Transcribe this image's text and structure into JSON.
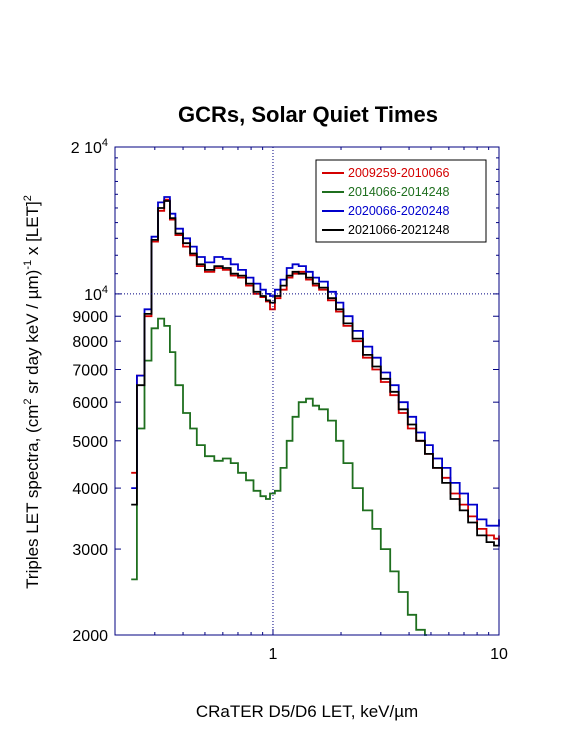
{
  "chart_data": {
    "type": "line",
    "title": "GCRs, Solar Quiet Times",
    "xlabel": "CRaTER D5/D6 LET, keV/µm",
    "ylabel": {
      "prefix": "Triples LET spectra, (cm",
      "sup1": "2",
      "middle": " sr day keV / µm)",
      "sup2": "-1",
      "suffix": " x [LET]",
      "sup3": "2"
    },
    "xscale": "log",
    "yscale": "log",
    "xlim": [
      0.2,
      10
    ],
    "ylim": [
      2000,
      20000
    ],
    "xticks": [
      {
        "value": 1,
        "label": "1"
      },
      {
        "value": 10,
        "label": "10"
      }
    ],
    "yticks": [
      {
        "value": 2000,
        "label": "2000"
      },
      {
        "value": 3000,
        "label": "3000"
      },
      {
        "value": 4000,
        "label": "4000"
      },
      {
        "value": 5000,
        "label": "5000"
      },
      {
        "value": 6000,
        "label": "6000"
      },
      {
        "value": 7000,
        "label": "7000"
      },
      {
        "value": 8000,
        "label": "8000"
      },
      {
        "value": 9000,
        "label": "9000"
      }
    ],
    "ytick_top": {
      "value": 20000,
      "base": "2 10",
      "exp": "4"
    },
    "ytick_mid": {
      "value": 10000,
      "base": "10",
      "exp": "4"
    },
    "reference_lines": {
      "x": 1,
      "y": 10000
    },
    "legend_position": "top-right",
    "series": [
      {
        "name": "2009259-2010066",
        "color": "#d40000",
        "x": [
          0.236,
          0.25,
          0.27,
          0.29,
          0.31,
          0.33,
          0.35,
          0.37,
          0.4,
          0.43,
          0.46,
          0.5,
          0.55,
          0.6,
          0.65,
          0.7,
          0.76,
          0.82,
          0.88,
          0.93,
          0.97,
          1.02,
          1.08,
          1.15,
          1.22,
          1.3,
          1.4,
          1.5,
          1.6,
          1.75,
          1.9,
          2.05,
          2.25,
          2.5,
          2.75,
          3.0,
          3.3,
          3.6,
          3.95,
          4.3,
          4.7,
          5.1,
          5.6,
          6.1,
          6.7,
          7.3,
          8.0,
          8.8,
          9.5,
          10.0
        ],
        "y": [
          4300,
          6800,
          9000,
          12800,
          14800,
          15600,
          14200,
          13200,
          12500,
          12000,
          11400,
          11100,
          11300,
          11200,
          10900,
          10800,
          10400,
          10000,
          9850,
          9650,
          9300,
          9800,
          10200,
          10800,
          11000,
          11100,
          10700,
          10400,
          10200,
          9700,
          9200,
          8600,
          8000,
          7400,
          7000,
          6600,
          6200,
          5700,
          5300,
          5000,
          4700,
          4400,
          4200,
          3900,
          3700,
          3500,
          3300,
          3200,
          3150,
          3200
        ]
      },
      {
        "name": "2014066-2014248",
        "color": "#1f6f1f",
        "x": [
          0.236,
          0.25,
          0.27,
          0.29,
          0.31,
          0.33,
          0.35,
          0.37,
          0.4,
          0.43,
          0.46,
          0.5,
          0.55,
          0.6,
          0.65,
          0.7,
          0.76,
          0.82,
          0.88,
          0.93,
          0.97,
          1.02,
          1.08,
          1.15,
          1.22,
          1.3,
          1.4,
          1.5,
          1.6,
          1.75,
          1.9,
          2.05,
          2.25,
          2.5,
          2.75,
          3.0,
          3.3,
          3.6,
          3.95,
          4.3,
          4.7
        ],
        "y": [
          2600,
          5300,
          7300,
          8500,
          8900,
          8600,
          7600,
          6500,
          5700,
          5300,
          4900,
          4650,
          4550,
          4600,
          4500,
          4300,
          4150,
          3950,
          3850,
          3800,
          3900,
          3950,
          4400,
          5000,
          5600,
          6000,
          6100,
          5900,
          5800,
          5500,
          5000,
          4500,
          4000,
          3600,
          3300,
          3000,
          2700,
          2450,
          2200,
          2050,
          2000
        ]
      },
      {
        "name": "2020066-2020248",
        "color": "#0000cc",
        "x": [
          0.236,
          0.25,
          0.27,
          0.29,
          0.31,
          0.33,
          0.35,
          0.37,
          0.4,
          0.43,
          0.46,
          0.5,
          0.55,
          0.6,
          0.65,
          0.7,
          0.76,
          0.82,
          0.88,
          0.93,
          0.97,
          1.02,
          1.08,
          1.15,
          1.22,
          1.3,
          1.4,
          1.5,
          1.6,
          1.75,
          1.9,
          2.05,
          2.25,
          2.5,
          2.75,
          3.0,
          3.3,
          3.6,
          3.95,
          4.3,
          4.7,
          5.1,
          5.6,
          6.1,
          6.7,
          7.3,
          8.0,
          8.8,
          9.5,
          10.0
        ],
        "y": [
          4000,
          6800,
          9300,
          13100,
          15400,
          15800,
          14600,
          13600,
          13000,
          12500,
          11900,
          11600,
          11900,
          11800,
          11500,
          11200,
          10800,
          10500,
          10200,
          10000,
          9900,
          10200,
          10700,
          11300,
          11500,
          11400,
          11100,
          10800,
          10600,
          10100,
          9600,
          9000,
          8400,
          7800,
          7400,
          6900,
          6500,
          6000,
          5600,
          5200,
          4900,
          4600,
          4400,
          4100,
          3900,
          3700,
          3450,
          3350,
          3350,
          3450
        ]
      },
      {
        "name": "2021066-2021248",
        "color": "#000000",
        "x": [
          0.236,
          0.25,
          0.27,
          0.29,
          0.31,
          0.33,
          0.35,
          0.37,
          0.4,
          0.43,
          0.46,
          0.5,
          0.55,
          0.6,
          0.65,
          0.7,
          0.76,
          0.82,
          0.88,
          0.93,
          0.97,
          1.02,
          1.08,
          1.15,
          1.22,
          1.3,
          1.4,
          1.5,
          1.6,
          1.75,
          1.9,
          2.05,
          2.25,
          2.5,
          2.75,
          3.0,
          3.3,
          3.6,
          3.95,
          4.3,
          4.7,
          5.1,
          5.6,
          6.1,
          6.7,
          7.3,
          8.0,
          8.8,
          9.5,
          10.0
        ],
        "y": [
          3700,
          6500,
          9100,
          12900,
          15000,
          15500,
          14300,
          13300,
          12700,
          12100,
          11500,
          11200,
          11400,
          11300,
          11000,
          10900,
          10500,
          10100,
          9900,
          9700,
          9600,
          9900,
          10400,
          10900,
          11100,
          11000,
          10800,
          10500,
          10300,
          9800,
          9300,
          8700,
          8100,
          7500,
          7100,
          6700,
          6300,
          5800,
          5400,
          5000,
          4700,
          4400,
          4100,
          3800,
          3600,
          3400,
          3200,
          3100,
          3050,
          3150
        ]
      }
    ]
  }
}
